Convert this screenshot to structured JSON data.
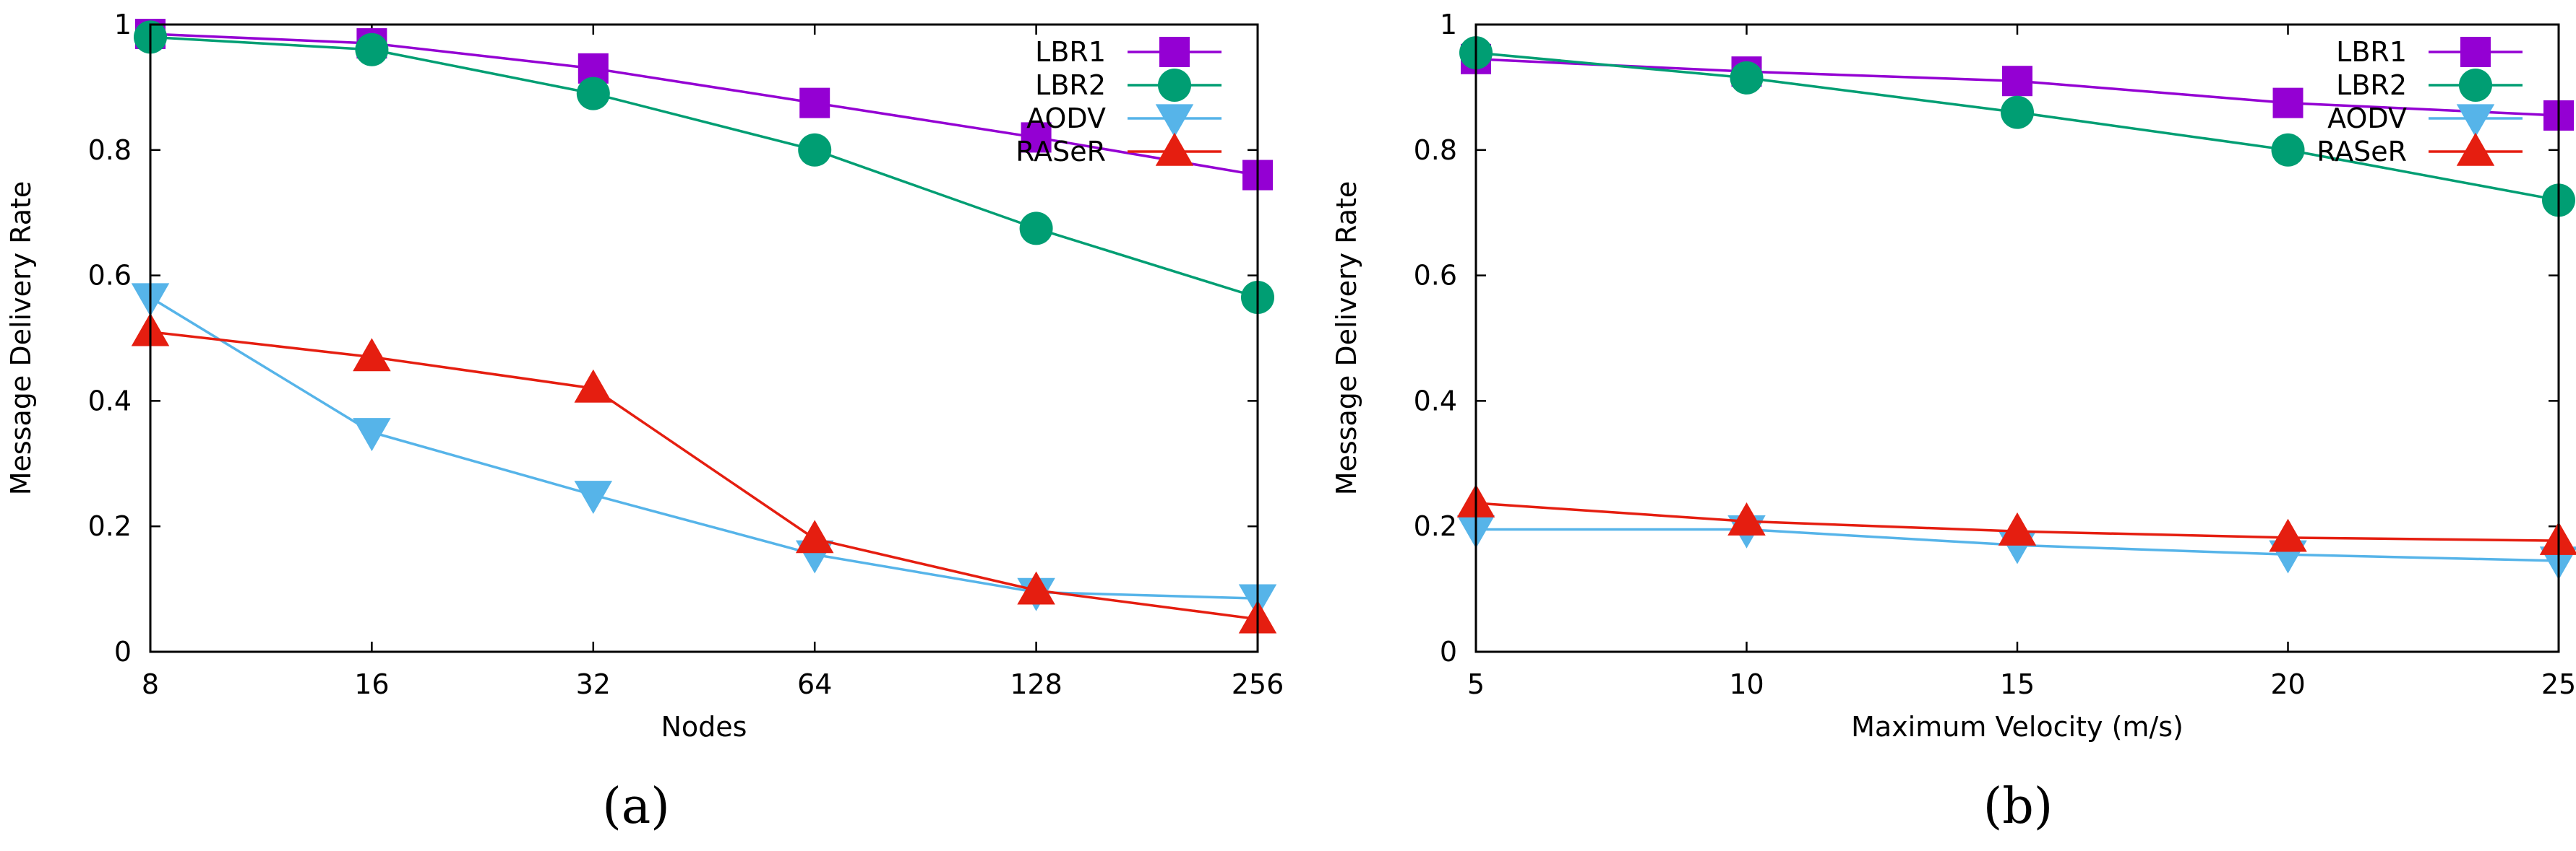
{
  "chart_data": [
    {
      "panel": "a",
      "caption": "(a)",
      "type": "line",
      "xlabel": "Nodes",
      "ylabel": "Message Delivery Rate",
      "categories": [
        "8",
        "16",
        "32",
        "64",
        "128",
        "256"
      ],
      "ylim": [
        0,
        1
      ],
      "yticks": [
        "0",
        "0.2",
        "0.4",
        "0.6",
        "0.8",
        "1"
      ],
      "legend_position": "top-right",
      "series": [
        {
          "name": "LBR1",
          "color": "#9400D3",
          "marker": "square",
          "values": [
            0.985,
            0.97,
            0.93,
            0.875,
            0.82,
            0.76
          ]
        },
        {
          "name": "LBR2",
          "color": "#009E73",
          "marker": "circle",
          "values": [
            0.98,
            0.96,
            0.89,
            0.8,
            0.675,
            0.565
          ]
        },
        {
          "name": "AODV",
          "color": "#56B4E9",
          "marker": "triangle-down",
          "values": [
            0.565,
            0.35,
            0.25,
            0.155,
            0.095,
            0.085
          ]
        },
        {
          "name": "RASeR",
          "color": "#E51E10",
          "marker": "triangle-up",
          "values": [
            0.51,
            0.47,
            0.42,
            0.18,
            0.098,
            0.052
          ]
        }
      ]
    },
    {
      "panel": "b",
      "caption": "(b)",
      "type": "line",
      "xlabel": "Maximum Velocity (m/s)",
      "ylabel": "Message Delivery Rate",
      "categories": [
        "5",
        "10",
        "15",
        "20",
        "25"
      ],
      "ylim": [
        0,
        1
      ],
      "yticks": [
        "0",
        "0.2",
        "0.4",
        "0.6",
        "0.8",
        "1"
      ],
      "legend_position": "top-right",
      "series": [
        {
          "name": "LBR1",
          "color": "#9400D3",
          "marker": "square",
          "values": [
            0.945,
            0.925,
            0.91,
            0.875,
            0.855
          ]
        },
        {
          "name": "LBR2",
          "color": "#009E73",
          "marker": "circle",
          "values": [
            0.955,
            0.915,
            0.86,
            0.8,
            0.72
          ]
        },
        {
          "name": "AODV",
          "color": "#56B4E9",
          "marker": "triangle-down",
          "values": [
            0.195,
            0.195,
            0.17,
            0.155,
            0.145
          ]
        },
        {
          "name": "RASeR",
          "color": "#E51E10",
          "marker": "triangle-up",
          "values": [
            0.237,
            0.208,
            0.192,
            0.182,
            0.177
          ]
        }
      ]
    }
  ]
}
